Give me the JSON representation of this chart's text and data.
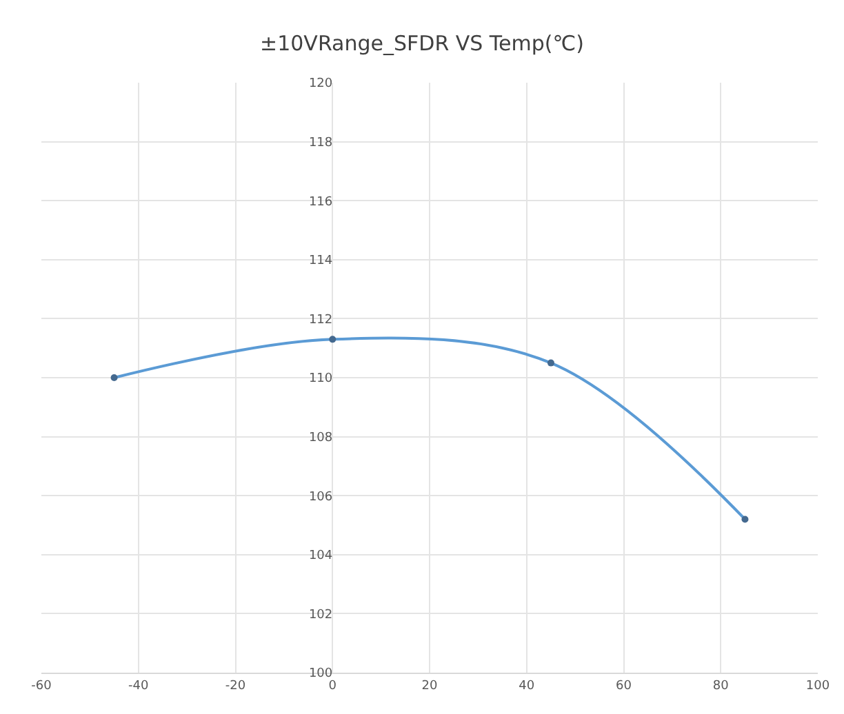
{
  "chart_data": {
    "type": "line",
    "title": "±10VRange_SFDR VS Temp(℃)",
    "x": [
      -45,
      0,
      45,
      85
    ],
    "series": [
      {
        "color": "#5b9bd5",
        "values": [
          110.0,
          111.3,
          110.5,
          105.2
        ]
      }
    ],
    "xlim": [
      -60,
      100
    ],
    "xticks": [
      -60,
      -40,
      -20,
      0,
      20,
      40,
      60,
      80,
      100
    ],
    "ylim": [
      100,
      120
    ],
    "yticks": [
      100,
      102,
      104,
      106,
      108,
      110,
      112,
      114,
      116,
      118,
      120
    ],
    "grid": true,
    "marker": "circle",
    "line_style": "solid"
  }
}
